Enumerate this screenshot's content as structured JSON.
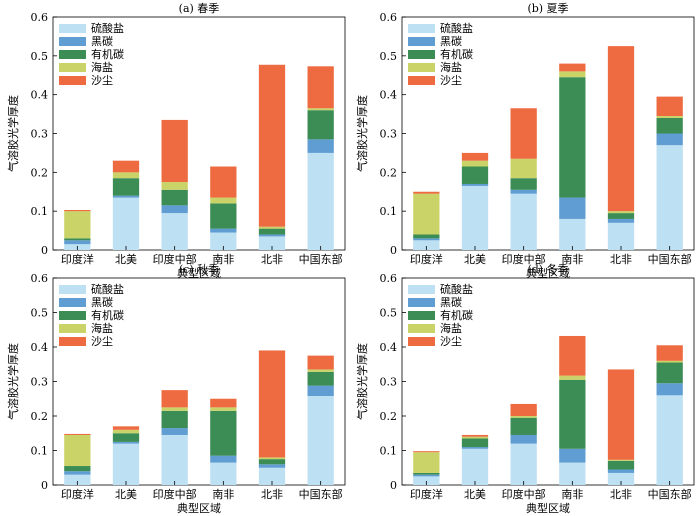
{
  "colors": {
    "硫酸盐": "#bde0f3",
    "黑碳": "#5f9dd2",
    "有机碳": "#3c8c55",
    "海盐": "#c9d368",
    "沙尘": "#ee6a40"
  },
  "chart_data": [
    {
      "type": "bar",
      "stacked": true,
      "title": "(a) 春季",
      "xlabel": "典型区域",
      "ylabel": "气溶胶光学厚度",
      "ylim": [
        0,
        0.6
      ],
      "yticks": [
        "0",
        "0.1",
        "0.2",
        "0.3",
        "0.4",
        "0.5",
        "0.6"
      ],
      "categories": [
        "印度洋",
        "北美",
        "印度中部",
        "南非",
        "北非",
        "中国东部"
      ],
      "legend_position": "top-left",
      "series": [
        {
          "name": "硫酸盐",
          "values": [
            0.015,
            0.135,
            0.095,
            0.045,
            0.035,
            0.25
          ]
        },
        {
          "name": "黑碳",
          "values": [
            0.01,
            0.005,
            0.02,
            0.01,
            0.005,
            0.035
          ]
        },
        {
          "name": "有机碳",
          "values": [
            0.005,
            0.045,
            0.04,
            0.065,
            0.015,
            0.075
          ]
        },
        {
          "name": "海盐",
          "values": [
            0.07,
            0.015,
            0.02,
            0.015,
            0.005,
            0.005
          ]
        },
        {
          "name": "沙尘",
          "values": [
            0.003,
            0.03,
            0.16,
            0.08,
            0.417,
            0.108
          ]
        }
      ]
    },
    {
      "type": "bar",
      "stacked": true,
      "title": "(b) 夏季",
      "xlabel": "典型区域",
      "ylabel": "气溶胶光学厚度",
      "ylim": [
        0,
        0.6
      ],
      "yticks": [
        "0",
        "0.1",
        "0.2",
        "0.3",
        "0.4",
        "0.5",
        "0.6"
      ],
      "categories": [
        "印度洋",
        "北美",
        "印度中部",
        "南非",
        "北非",
        "中国东部"
      ],
      "legend_position": "top-left",
      "series": [
        {
          "name": "硫酸盐",
          "values": [
            0.025,
            0.165,
            0.145,
            0.08,
            0.07,
            0.27
          ]
        },
        {
          "name": "黑碳",
          "values": [
            0.005,
            0.005,
            0.01,
            0.055,
            0.01,
            0.03
          ]
        },
        {
          "name": "有机碳",
          "values": [
            0.01,
            0.045,
            0.03,
            0.31,
            0.015,
            0.04
          ]
        },
        {
          "name": "海盐",
          "values": [
            0.105,
            0.015,
            0.05,
            0.015,
            0.005,
            0.005
          ]
        },
        {
          "name": "沙尘",
          "values": [
            0.005,
            0.02,
            0.13,
            0.02,
            0.425,
            0.05
          ]
        }
      ]
    },
    {
      "type": "bar",
      "stacked": true,
      "title": "(c) 秋季",
      "xlabel": "典型区域",
      "ylabel": "气溶胶光学厚度",
      "ylim": [
        0,
        0.6
      ],
      "yticks": [
        "0",
        "0.1",
        "0.2",
        "0.3",
        "0.4",
        "0.5",
        "0.6"
      ],
      "categories": [
        "印度洋",
        "北美",
        "印度中部",
        "南非",
        "北非",
        "中国东部"
      ],
      "legend_position": "top-left",
      "series": [
        {
          "name": "硫酸盐",
          "values": [
            0.03,
            0.12,
            0.145,
            0.065,
            0.05,
            0.258
          ]
        },
        {
          "name": "黑碳",
          "values": [
            0.01,
            0.005,
            0.02,
            0.02,
            0.01,
            0.03
          ]
        },
        {
          "name": "有机碳",
          "values": [
            0.015,
            0.025,
            0.05,
            0.13,
            0.015,
            0.04
          ]
        },
        {
          "name": "海盐",
          "values": [
            0.09,
            0.01,
            0.01,
            0.01,
            0.005,
            0.007
          ]
        },
        {
          "name": "沙尘",
          "values": [
            0.003,
            0.01,
            0.05,
            0.025,
            0.31,
            0.04
          ]
        }
      ]
    },
    {
      "type": "bar",
      "stacked": true,
      "title": "(d) 冬季",
      "xlabel": "典型区域",
      "ylabel": "气溶胶光学厚度",
      "ylim": [
        0,
        0.6
      ],
      "yticks": [
        "0",
        "0.1",
        "0.2",
        "0.3",
        "0.4",
        "0.5",
        "0.6"
      ],
      "categories": [
        "印度洋",
        "北美",
        "印度中部",
        "南非",
        "北非",
        "中国东部"
      ],
      "legend_position": "top-left",
      "series": [
        {
          "name": "硫酸盐",
          "values": [
            0.025,
            0.105,
            0.12,
            0.065,
            0.035,
            0.26
          ]
        },
        {
          "name": "黑碳",
          "values": [
            0.005,
            0.005,
            0.025,
            0.04,
            0.01,
            0.035
          ]
        },
        {
          "name": "有机碳",
          "values": [
            0.005,
            0.025,
            0.05,
            0.2,
            0.025,
            0.06
          ]
        },
        {
          "name": "海盐",
          "values": [
            0.06,
            0.005,
            0.005,
            0.012,
            0.003,
            0.005
          ]
        },
        {
          "name": "沙尘",
          "values": [
            0.003,
            0.005,
            0.035,
            0.115,
            0.262,
            0.045
          ]
        }
      ]
    }
  ]
}
